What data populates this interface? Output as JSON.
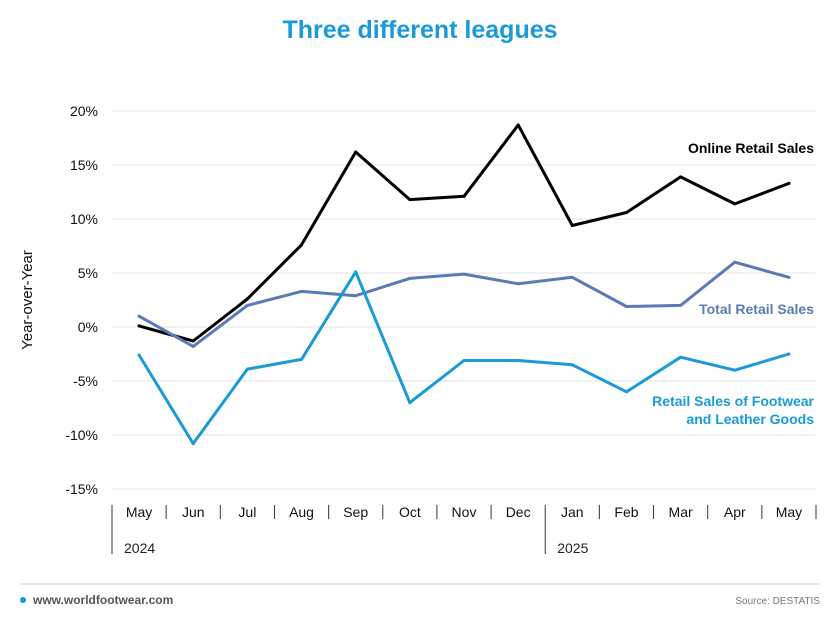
{
  "header": {
    "title": "Three different leagues"
  },
  "footer": {
    "website": "www.worldfootwear.com",
    "source": "Source: DESTATIS"
  },
  "colors": {
    "title": "#1a9ad6",
    "grid": "#e6e6e6",
    "axis": "#333333",
    "footer_bullet": "#1a9ad6",
    "footer_text": "#555555"
  },
  "chart_data": {
    "type": "line",
    "title": "Three different leagues",
    "ylabel": "Year-over-Year",
    "xlabel": "",
    "ylim": [
      -15,
      20
    ],
    "yticks": [
      20,
      15,
      10,
      5,
      0,
      -5,
      -10,
      -15
    ],
    "ytick_labels": [
      "20%",
      "15%",
      "10%",
      "5%",
      "0%",
      "-5%",
      "-10%",
      "-15%"
    ],
    "grid": "horizontal",
    "categories": [
      "May",
      "Jun",
      "Jul",
      "Aug",
      "Sep",
      "Oct",
      "Nov",
      "Dec",
      "Jan",
      "Feb",
      "Mar",
      "Apr",
      "May"
    ],
    "years": [
      {
        "label": "2024",
        "start_index": 0
      },
      {
        "label": "2025",
        "start_index": 8
      }
    ],
    "series": [
      {
        "name": "Online Retail Sales",
        "label_lines": [
          "Online Retail Sales"
        ],
        "color": "#000000",
        "values": [
          0.1,
          -1.3,
          2.6,
          7.6,
          16.2,
          11.8,
          12.1,
          18.7,
          9.4,
          10.6,
          13.9,
          11.4,
          13.3
        ]
      },
      {
        "name": "Total Retail Sales",
        "label_lines": [
          "Total Retail Sales"
        ],
        "color": "#5b7bb5",
        "values": [
          1.0,
          -1.8,
          2.0,
          3.3,
          2.9,
          4.5,
          4.9,
          4.0,
          4.6,
          1.9,
          2.0,
          6.0,
          4.6
        ]
      },
      {
        "name": "Retail Sales of Footwear and Leather Goods",
        "label_lines": [
          "Retail Sales of Footwear",
          "and Leather Goods"
        ],
        "color": "#1a9ad6",
        "values": [
          -2.6,
          -10.8,
          -3.9,
          -3.0,
          5.1,
          -7.0,
          -3.1,
          -3.1,
          -3.5,
          -6.0,
          -2.8,
          -4.0,
          -2.5
        ]
      }
    ]
  }
}
